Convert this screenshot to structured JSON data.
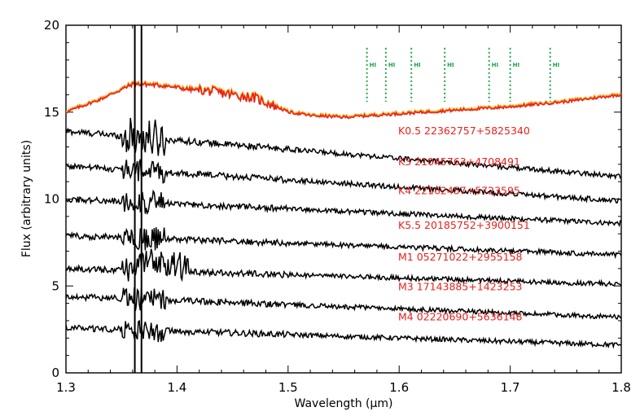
{
  "chart_data": {
    "type": "line",
    "title": "",
    "xlabel": "Wavelength (μm)",
    "ylabel": "Flux (arbitrary units)",
    "xlim": [
      1.3,
      1.8
    ],
    "ylim": [
      0,
      20
    ],
    "xticks": [
      "1.3",
      "1.4",
      "1.5",
      "1.6",
      "1.7",
      "1.8"
    ],
    "yticks": [
      "0",
      "5",
      "10",
      "15",
      "20"
    ],
    "grid": false,
    "colors": {
      "spectra": "#000000",
      "composite": "#e8211c",
      "composite_under": "#f5a623",
      "labels": "#e8211c",
      "hydrogen_lines": "#1fa24a"
    },
    "composite": {
      "x": [
        1.3,
        1.33,
        1.35,
        1.36,
        1.37,
        1.39,
        1.41,
        1.43,
        1.45,
        1.47,
        1.49,
        1.5,
        1.52,
        1.55,
        1.6,
        1.65,
        1.7,
        1.75,
        1.8
      ],
      "y": [
        15.0,
        15.7,
        16.3,
        16.6,
        16.6,
        16.5,
        16.3,
        16.2,
        16.0,
        15.8,
        15.3,
        15.0,
        14.8,
        14.7,
        14.9,
        15.1,
        15.3,
        15.6,
        16.0
      ]
    },
    "series": [
      {
        "name": "K0.5 22362757+5825340",
        "label": "K0.5  22362757+5825340",
        "offset_start": 13.9,
        "offset_end": 11.3
      },
      {
        "name": "K3 21045763+4708491",
        "label": "K3  21045763+4708491",
        "offset_start": 11.9,
        "offset_end": 9.9
      },
      {
        "name": "K4 22162457+5723595",
        "label": "K4  22162457+5723595",
        "offset_start": 10.0,
        "offset_end": 8.6
      },
      {
        "name": "K5.5 20185752+3900151",
        "label": "K5.5  20185752+3900151",
        "offset_start": 7.9,
        "offset_end": 6.8
      },
      {
        "name": "M1 05271022+2955158",
        "label": "M1  05271022+2955158",
        "offset_start": 6.0,
        "offset_end": 5.1
      },
      {
        "name": "M3 17143885+1423253",
        "label": "M3  17143885+1423253",
        "offset_start": 4.4,
        "offset_end": 3.2
      },
      {
        "name": "M4 02220690+5636148",
        "label": "M4  02220690+5636148",
        "offset_start": 2.6,
        "offset_end": 1.6
      }
    ],
    "telluric_gap_lines": [
      1.362,
      1.368
    ],
    "hydrogen_lines": {
      "label": "HI",
      "x": [
        1.571,
        1.588,
        1.611,
        1.641,
        1.681,
        1.7,
        1.736
      ],
      "y_top": 18.7,
      "y_bottom": 15.6
    }
  }
}
